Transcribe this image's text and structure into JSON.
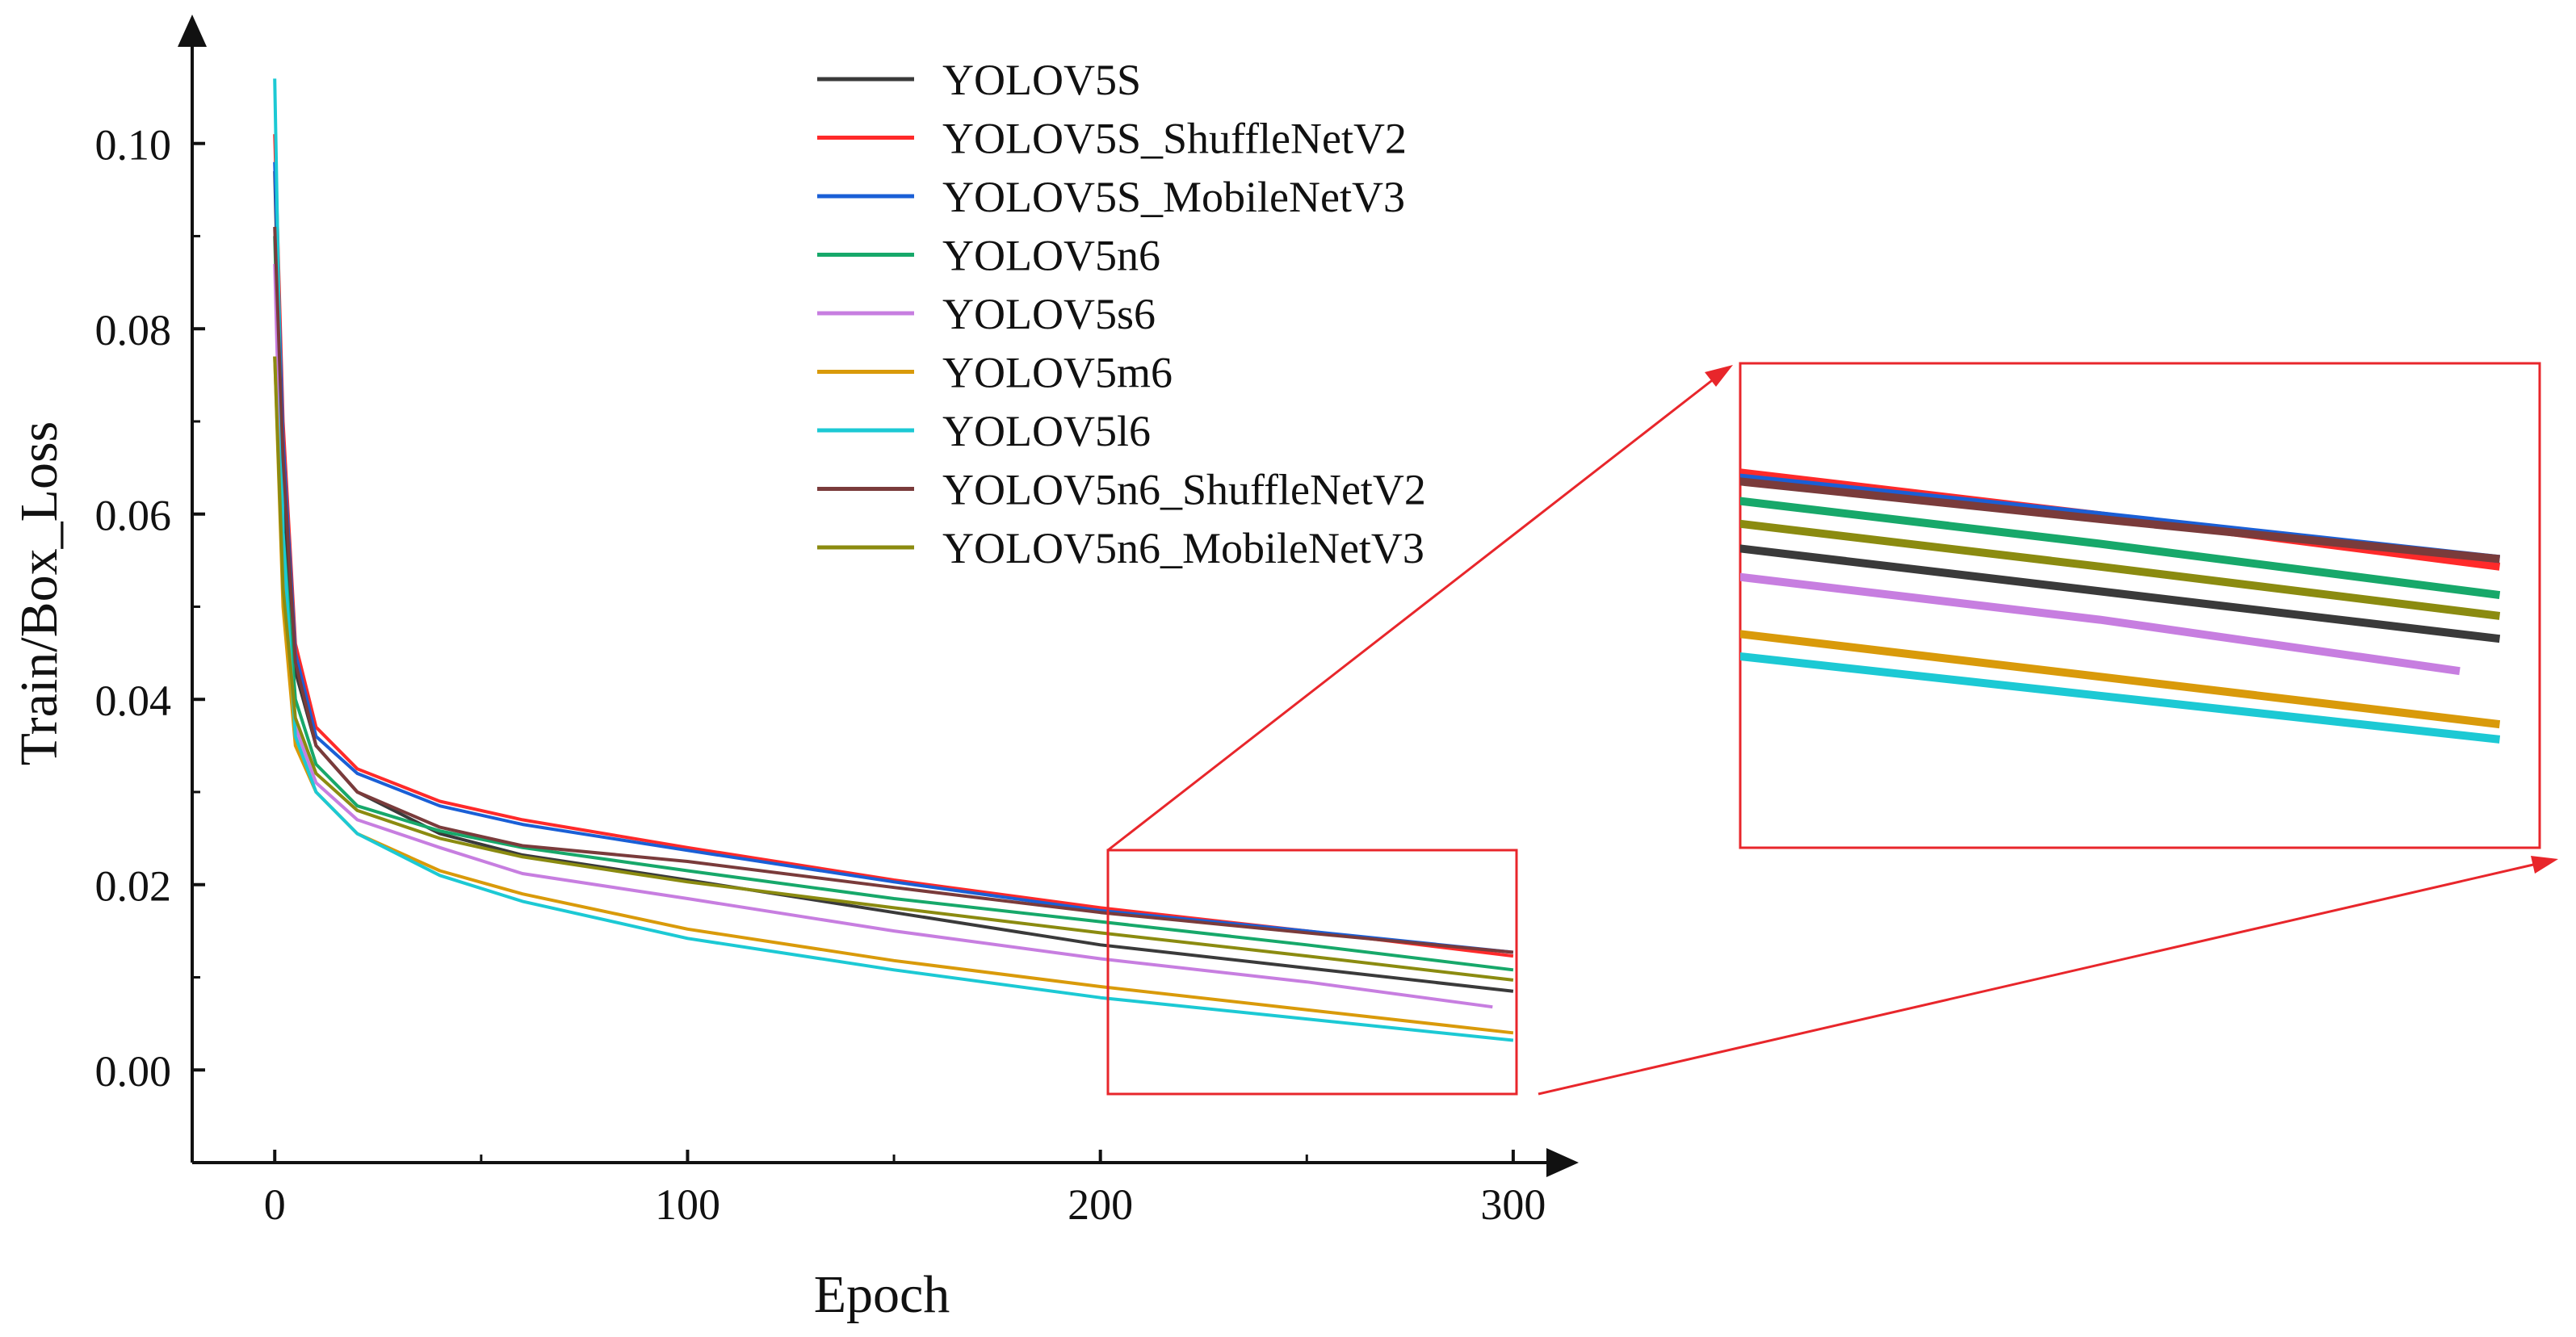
{
  "chart_data": {
    "type": "line",
    "xlabel": "Epoch",
    "ylabel": "Train/Box_Loss",
    "xlim": [
      -20,
      310
    ],
    "ylim": [
      -0.01,
      0.112
    ],
    "xticks": [
      0,
      100,
      200,
      300
    ],
    "xtick_labels": [
      "0",
      "100",
      "200",
      "300"
    ],
    "yticks": [
      0.0,
      0.02,
      0.04,
      0.06,
      0.08,
      0.1
    ],
    "ytick_labels": [
      "0.00",
      "0.02",
      "0.04",
      "0.06",
      "0.08",
      "0.10"
    ],
    "legend_position": "top-center",
    "grid": false,
    "zoom": {
      "x_range": [
        205,
        305
      ],
      "y_range": [
        -0.0025,
        0.023
      ],
      "box_color": "#e8262b"
    },
    "series": [
      {
        "name": "YOLOV5S",
        "color": "#3a3a3a",
        "points": [
          [
            0,
            0.097
          ],
          [
            2,
            0.062
          ],
          [
            5,
            0.043
          ],
          [
            10,
            0.035
          ],
          [
            20,
            0.03
          ],
          [
            40,
            0.0255
          ],
          [
            60,
            0.0232
          ],
          [
            100,
            0.0205
          ],
          [
            150,
            0.017
          ],
          [
            200,
            0.0135
          ],
          [
            250,
            0.011
          ],
          [
            300,
            0.0085
          ]
        ]
      },
      {
        "name": "YOLOV5S_ShuffleNetV2",
        "color": "#ff2a2a",
        "points": [
          [
            0,
            0.101
          ],
          [
            2,
            0.07
          ],
          [
            5,
            0.046
          ],
          [
            10,
            0.037
          ],
          [
            20,
            0.0325
          ],
          [
            40,
            0.029
          ],
          [
            60,
            0.027
          ],
          [
            100,
            0.024
          ],
          [
            150,
            0.0205
          ],
          [
            200,
            0.0175
          ],
          [
            250,
            0.015
          ],
          [
            300,
            0.0123
          ]
        ]
      },
      {
        "name": "YOLOV5S_MobileNetV3",
        "color": "#1a5fd6",
        "points": [
          [
            0,
            0.098
          ],
          [
            2,
            0.068
          ],
          [
            5,
            0.045
          ],
          [
            10,
            0.036
          ],
          [
            20,
            0.032
          ],
          [
            40,
            0.0285
          ],
          [
            60,
            0.0265
          ],
          [
            100,
            0.0237
          ],
          [
            150,
            0.0203
          ],
          [
            200,
            0.0172
          ],
          [
            250,
            0.015
          ],
          [
            300,
            0.0127
          ]
        ]
      },
      {
        "name": "YOLOV5n6",
        "color": "#17a86a",
        "points": [
          [
            0,
            0.09
          ],
          [
            2,
            0.058
          ],
          [
            5,
            0.04
          ],
          [
            10,
            0.033
          ],
          [
            20,
            0.0285
          ],
          [
            40,
            0.0258
          ],
          [
            60,
            0.024
          ],
          [
            100,
            0.0215
          ],
          [
            150,
            0.0185
          ],
          [
            200,
            0.016
          ],
          [
            250,
            0.0135
          ],
          [
            300,
            0.0108
          ]
        ]
      },
      {
        "name": "YOLOV5s6",
        "color": "#c77ee0",
        "points": [
          [
            0,
            0.087
          ],
          [
            2,
            0.054
          ],
          [
            5,
            0.037
          ],
          [
            10,
            0.031
          ],
          [
            20,
            0.027
          ],
          [
            40,
            0.024
          ],
          [
            60,
            0.0212
          ],
          [
            100,
            0.0185
          ],
          [
            150,
            0.015
          ],
          [
            200,
            0.012
          ],
          [
            250,
            0.0095
          ],
          [
            295,
            0.0068
          ]
        ]
      },
      {
        "name": "YOLOV5m6",
        "color": "#d99a0a",
        "points": [
          [
            0,
            0.077
          ],
          [
            2,
            0.05
          ],
          [
            5,
            0.035
          ],
          [
            10,
            0.03
          ],
          [
            20,
            0.0255
          ],
          [
            40,
            0.0215
          ],
          [
            60,
            0.019
          ],
          [
            100,
            0.0152
          ],
          [
            150,
            0.0118
          ],
          [
            200,
            0.009
          ],
          [
            250,
            0.0065
          ],
          [
            300,
            0.004
          ]
        ]
      },
      {
        "name": "YOLOV5l6",
        "color": "#1cc9d4",
        "points": [
          [
            0,
            0.107
          ],
          [
            2,
            0.058
          ],
          [
            5,
            0.036
          ],
          [
            10,
            0.03
          ],
          [
            20,
            0.0255
          ],
          [
            40,
            0.021
          ],
          [
            60,
            0.0182
          ],
          [
            100,
            0.0142
          ],
          [
            150,
            0.0108
          ],
          [
            200,
            0.0078
          ],
          [
            250,
            0.0055
          ],
          [
            300,
            0.0032
          ]
        ]
      },
      {
        "name": "YOLOV5n6_ShuffleNetV2",
        "color": "#7a3b3b",
        "points": [
          [
            0,
            0.091
          ],
          [
            2,
            0.066
          ],
          [
            5,
            0.044
          ],
          [
            10,
            0.035
          ],
          [
            20,
            0.03
          ],
          [
            40,
            0.0262
          ],
          [
            60,
            0.0242
          ],
          [
            100,
            0.0225
          ],
          [
            150,
            0.0197
          ],
          [
            200,
            0.017
          ],
          [
            250,
            0.0148
          ],
          [
            300,
            0.0127
          ]
        ]
      },
      {
        "name": "YOLOV5n6_MobileNetV3",
        "color": "#8b8b10",
        "points": [
          [
            0,
            0.077
          ],
          [
            2,
            0.052
          ],
          [
            5,
            0.038
          ],
          [
            10,
            0.032
          ],
          [
            20,
            0.028
          ],
          [
            40,
            0.025
          ],
          [
            60,
            0.023
          ],
          [
            100,
            0.0203
          ],
          [
            150,
            0.0175
          ],
          [
            200,
            0.0148
          ],
          [
            250,
            0.0123
          ],
          [
            300,
            0.0097
          ]
        ]
      }
    ]
  }
}
